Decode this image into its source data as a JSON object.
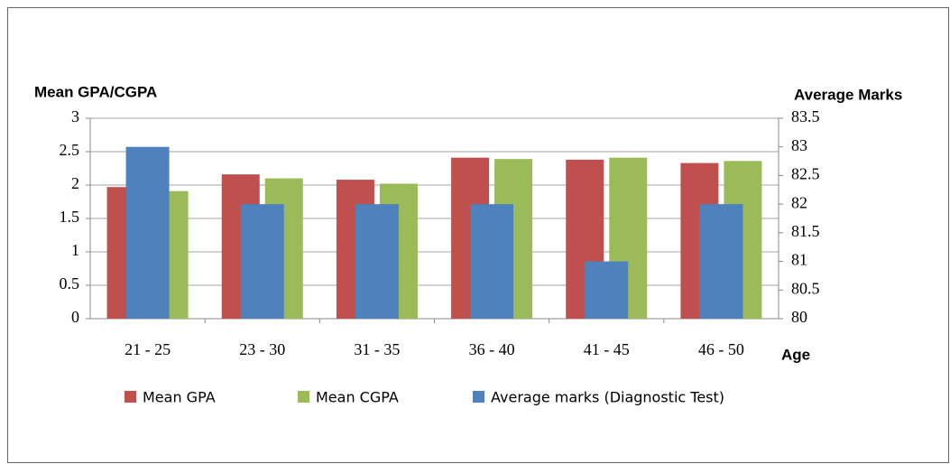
{
  "chart_data": {
    "type": "bar",
    "y_axis_title": "Mean GPA/CGPA",
    "y2_axis_title": "Average Marks",
    "x_axis_title": "Age",
    "categories": [
      "21 - 25",
      "23 - 30",
      "31 - 35",
      "36 - 40",
      "41 - 45",
      "46 - 50"
    ],
    "series": [
      {
        "name": "Mean GPA",
        "color": "#c0504d",
        "values": [
          1.97,
          2.16,
          2.08,
          2.41,
          2.38,
          2.33
        ]
      },
      {
        "name": "Mean CGPA",
        "color": "#9bbb59",
        "values": [
          1.91,
          2.1,
          2.02,
          2.39,
          2.41,
          2.36
        ]
      },
      {
        "name": "Average marks (Diagnostic Test)",
        "color": "#4f81bd",
        "axis": "y2",
        "values": [
          83,
          82,
          82,
          82,
          81,
          82
        ]
      }
    ],
    "ylim": [
      0,
      3
    ],
    "yticks": [
      0,
      0.5,
      1,
      1.5,
      2,
      2.5,
      3
    ],
    "y2lim": [
      80,
      83.5
    ],
    "y2ticks": [
      80,
      80.5,
      81,
      81.5,
      82,
      82.5,
      83,
      83.5
    ],
    "grid": true,
    "legend": "bottom"
  }
}
